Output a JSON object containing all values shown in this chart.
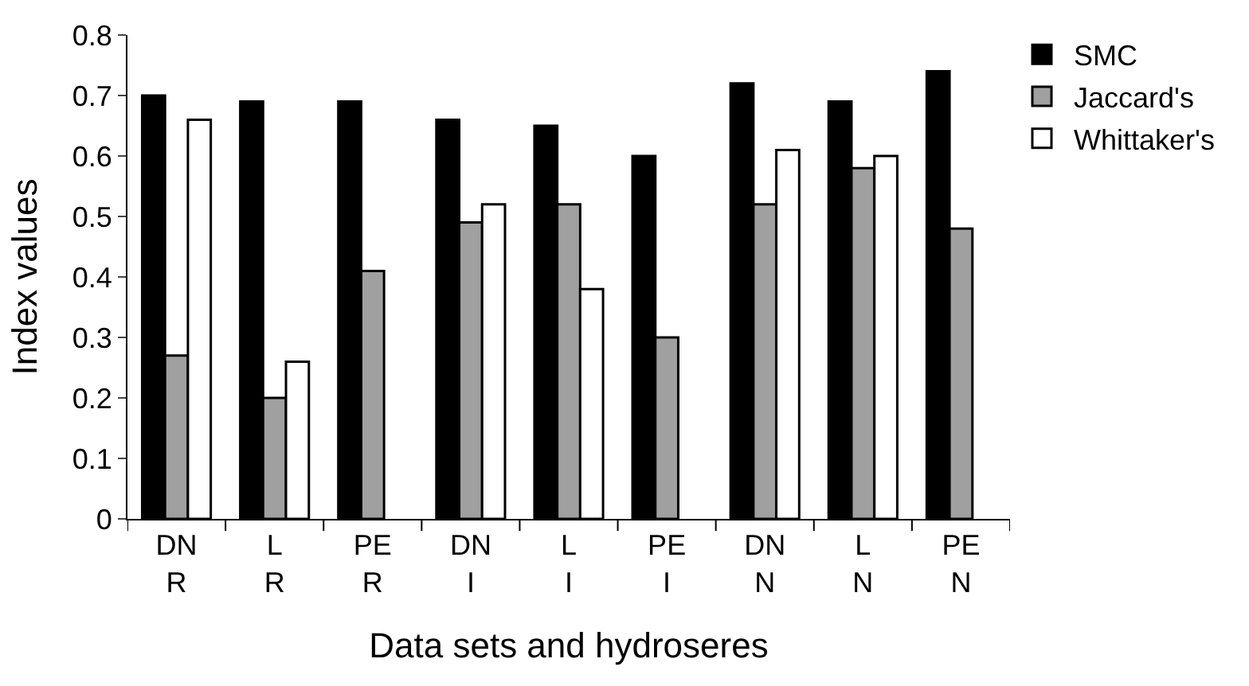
{
  "chart_data": {
    "type": "bar",
    "xlabel": "Data sets and hydroseres",
    "ylabel": "Index values",
    "categories": [
      "DN\nR",
      "L\nR",
      "PE\nR",
      "DN\nI",
      "L\nI",
      "PE\nI",
      "DN\nN",
      "L\nN",
      "PE\nN"
    ],
    "series": [
      {
        "name": "SMC",
        "color": "#000000",
        "values": [
          0.7,
          0.69,
          0.69,
          0.66,
          0.65,
          0.6,
          0.72,
          0.69,
          0.74
        ]
      },
      {
        "name": "Jaccard's",
        "color": "#a0a0a0",
        "values": [
          0.27,
          0.2,
          0.41,
          0.49,
          0.52,
          0.3,
          0.52,
          0.58,
          0.48
        ]
      },
      {
        "name": "Whittaker's",
        "color": "#ffffff",
        "values": [
          0.66,
          0.26,
          null,
          0.52,
          0.38,
          null,
          0.61,
          0.6,
          null
        ]
      }
    ],
    "ylim": [
      0,
      0.8
    ],
    "yticks": [
      0,
      0.1,
      0.2,
      0.3,
      0.4,
      0.5,
      0.6,
      0.7,
      0.8
    ],
    "legend": "top right"
  }
}
